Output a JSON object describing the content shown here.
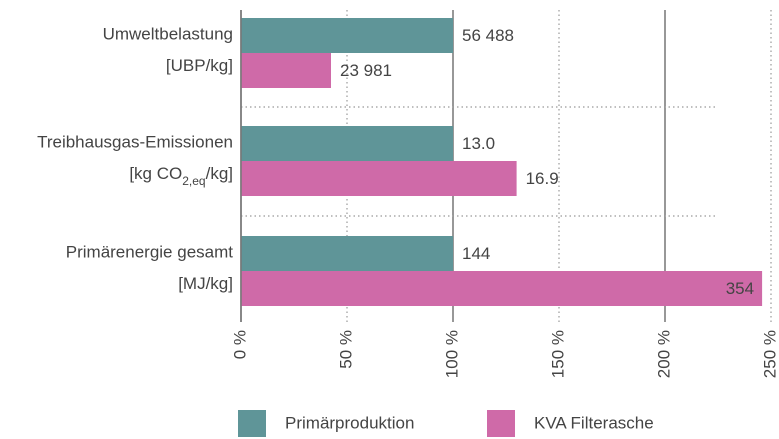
{
  "chart_data": {
    "type": "bar",
    "orientation": "horizontal",
    "categories": [
      "Umweltbelastung",
      "Treibhausgas-Emissionen",
      "Primärenergie gesamt"
    ],
    "units": [
      [
        "[UBP/kg]"
      ],
      [
        "[kg CO",
        "2,eq",
        "/kg]"
      ],
      [
        "[MJ/kg]"
      ]
    ],
    "series": [
      {
        "name": "Primärproduktion",
        "color": "#5f9598",
        "label_color": "#2a7c80",
        "values": [
          100,
          100,
          100
        ],
        "value_labels": [
          "56 488",
          "13.0",
          "144"
        ]
      },
      {
        "name": "KVA Filterasche",
        "color": "#cf6aa8",
        "label_color": "#c0389a",
        "values": [
          42.45,
          130,
          245.8
        ],
        "value_labels": [
          "23 981",
          "16.9",
          "354"
        ]
      }
    ],
    "xlim": [
      0,
      250
    ],
    "xticks": [
      {
        "value": 0,
        "label": "0 %"
      },
      {
        "value": 50,
        "label": "50 %"
      },
      {
        "value": 100,
        "label": "100 %"
      },
      {
        "value": 150,
        "label": "150 %"
      },
      {
        "value": 200,
        "label": "200 %"
      },
      {
        "value": 250,
        "label": "250 %"
      }
    ],
    "grid": true,
    "legend": "bottom"
  }
}
